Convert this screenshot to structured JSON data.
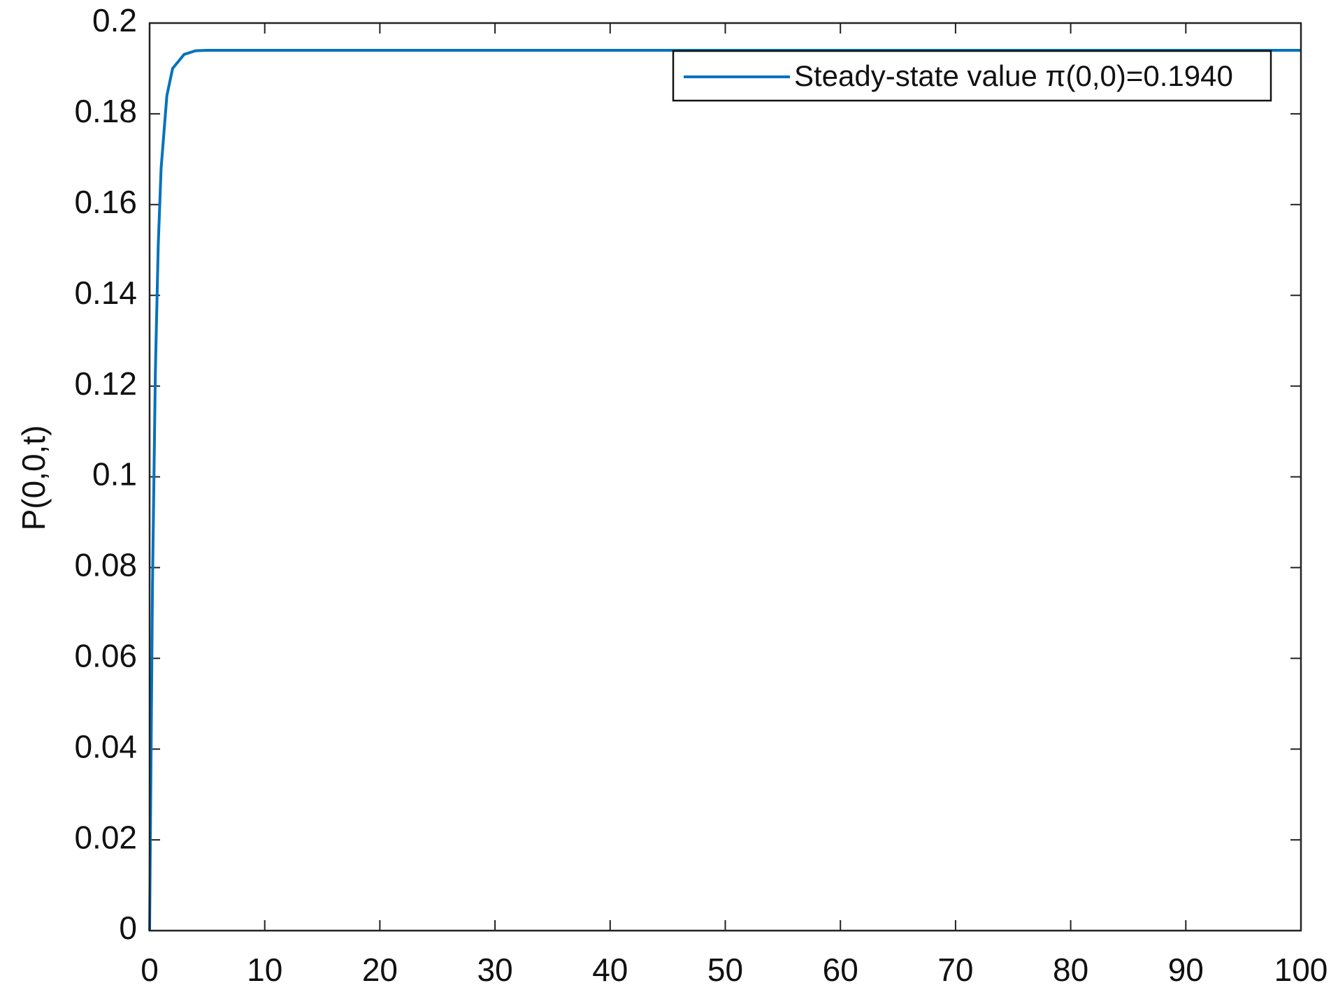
{
  "chart_data": {
    "type": "line",
    "ylabel": "P(0,0,t)",
    "x": [
      0,
      0.25,
      0.5,
      0.75,
      1,
      1.5,
      2,
      3,
      4,
      5,
      10,
      20,
      30,
      40,
      50,
      60,
      70,
      80,
      90,
      100
    ],
    "series": [
      {
        "name": "Steady-state value π(0,0)=0.1940",
        "color": "#0072bd",
        "values": [
          0,
          0.076,
          0.123,
          0.151,
          0.168,
          0.184,
          0.19,
          0.1931,
          0.1939,
          0.194,
          0.194,
          0.194,
          0.194,
          0.194,
          0.194,
          0.194,
          0.194,
          0.194,
          0.194,
          0.194
        ]
      }
    ],
    "xlim": [
      0,
      100
    ],
    "xticks": [
      0,
      10,
      20,
      30,
      40,
      50,
      60,
      70,
      80,
      90,
      100
    ],
    "ylim": [
      0,
      0.2
    ],
    "yticks": [
      0,
      0.02,
      0.04,
      0.06,
      0.08,
      0.1,
      0.12,
      0.14,
      0.16,
      0.18,
      0.2
    ],
    "grid": false,
    "legend": "top-right"
  }
}
